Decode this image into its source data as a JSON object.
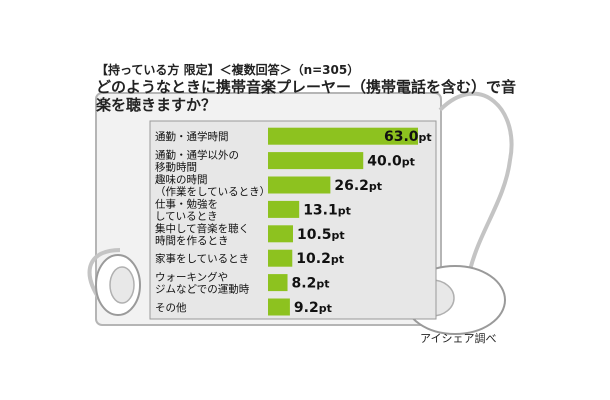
{
  "title": {
    "condition": "【持っている方 限定】＜複数回答＞（n=305）",
    "question": "どのようなときに携帯音楽プレーヤー（携帯電話を含む）で音楽を聴きますか？"
  },
  "source": "アイシェア調べ",
  "colors": {
    "bar": "#8dc21f",
    "panel": "#e7e7e7",
    "border": "#9a9a9a"
  },
  "chart_data": {
    "type": "bar",
    "orientation": "horizontal",
    "categories": [
      [
        "通勤・通学時間"
      ],
      [
        "通勤・通学以外の",
        "移動時間"
      ],
      [
        "趣味の時間",
        "（作業をしているとき）"
      ],
      [
        "仕事・勉強を",
        "しているとき"
      ],
      [
        "集中して音楽を聴く",
        "時間を作るとき"
      ],
      [
        "家事をしているとき"
      ],
      [
        "ウォーキングや",
        "ジムなどでの運動時"
      ],
      [
        "その他"
      ]
    ],
    "values": [
      63.0,
      40.0,
      26.2,
      13.1,
      10.5,
      10.2,
      8.2,
      9.2
    ],
    "value_labels": [
      "63.0pt",
      "40.0pt",
      "26.2pt",
      "13.1pt",
      "10.5pt",
      "10.2pt",
      "8.2pt",
      "9.2pt"
    ],
    "xlim": [
      0,
      63.0
    ]
  }
}
